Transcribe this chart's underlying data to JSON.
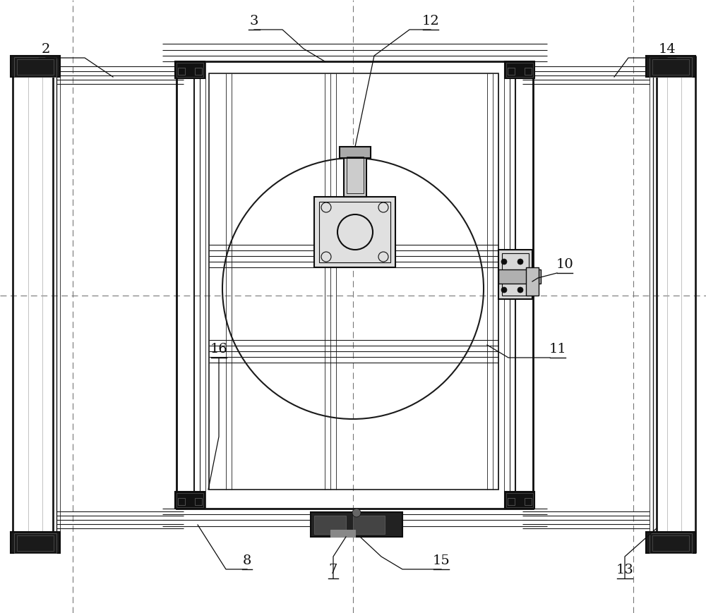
{
  "bg_color": "#ffffff",
  "lc": "#1a1a1a",
  "dc": "#0d0d0d",
  "fig_width": 10.0,
  "fig_height": 8.69,
  "dpi": 100
}
